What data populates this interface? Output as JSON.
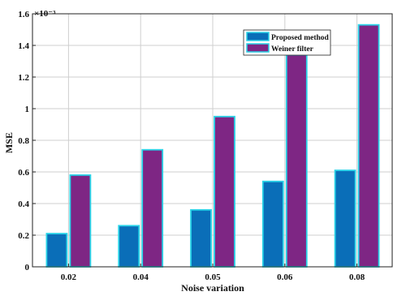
{
  "chart_data": {
    "type": "bar",
    "title": "",
    "xlabel": "Noise variation",
    "ylabel": "MSE",
    "y_exponent_label": "×10⁻³",
    "categories": [
      "0.02",
      "0.04",
      "0.05",
      "0.06",
      "0.08"
    ],
    "ylim": [
      0,
      1.6
    ],
    "yticks": [
      "0",
      "0.2",
      "0.4",
      "0.6",
      "0.8",
      "1",
      "1.2",
      "1.4",
      "1.6"
    ],
    "grid": true,
    "legend_position": "top-right",
    "series": [
      {
        "name": "Proposed method",
        "color": "#0a6eb8",
        "values": [
          0.21,
          0.26,
          0.36,
          0.54,
          0.61
        ]
      },
      {
        "name": "Weiner filter",
        "color": "#7e2684",
        "values": [
          0.58,
          0.74,
          0.95,
          1.34,
          1.53
        ]
      }
    ],
    "bar_edge_color": "#2ad4e8"
  }
}
